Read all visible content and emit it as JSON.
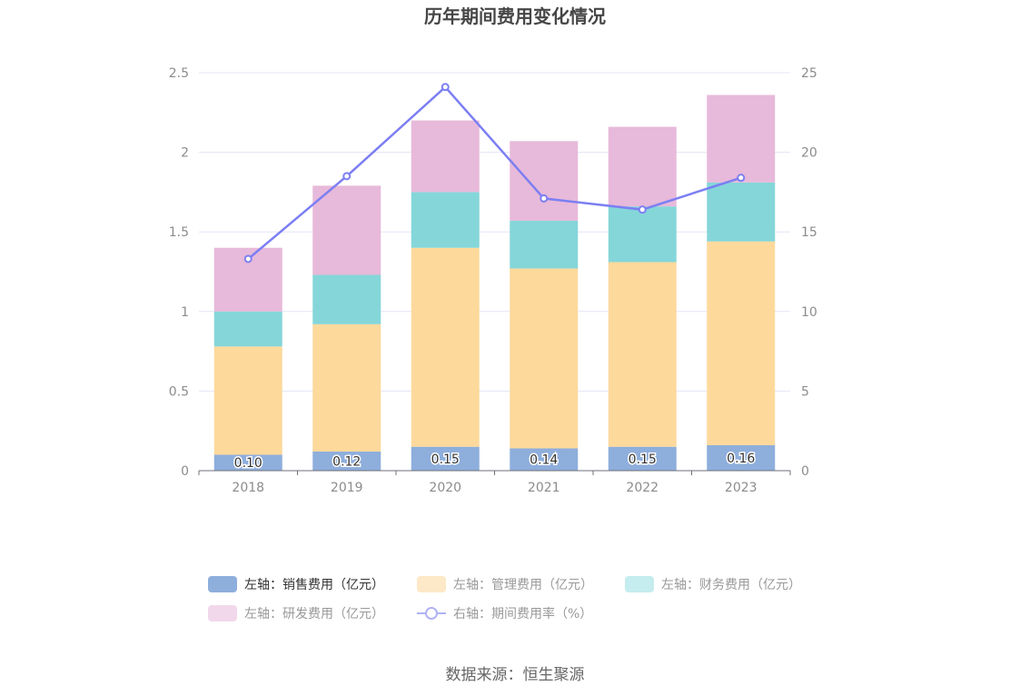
{
  "chart_data": {
    "type": "bar",
    "title": "历年期间费用变化情况",
    "source": "数据来源：恒生聚源",
    "categories": [
      "2018",
      "2019",
      "2020",
      "2021",
      "2022",
      "2023"
    ],
    "stacked": true,
    "left_axis": {
      "ylim": [
        0,
        2.5
      ],
      "ticks": [
        "0",
        "0.5",
        "1",
        "1.5",
        "2",
        "2.5"
      ],
      "tick_values": [
        0,
        0.5,
        1,
        1.5,
        2,
        2.5
      ]
    },
    "right_axis": {
      "ylim": [
        0,
        25
      ],
      "ticks": [
        "0",
        "5",
        "10",
        "15",
        "20",
        "25"
      ],
      "tick_values": [
        0,
        5,
        10,
        15,
        20,
        25
      ]
    },
    "grid": true,
    "legend_position": "bottom",
    "series": [
      {
        "name": "左轴：销售费用（亿元）",
        "type": "bar",
        "axis": "left",
        "color": "#8eaedc",
        "values": [
          0.1,
          0.12,
          0.15,
          0.14,
          0.15,
          0.16
        ],
        "labels": [
          "0.10",
          "0.12",
          "0.15",
          "0.14",
          "0.15",
          "0.16"
        ]
      },
      {
        "name": "左轴：管理费用（亿元）",
        "type": "bar",
        "axis": "left",
        "color": "#fed99c",
        "values": [
          0.68,
          0.8,
          1.25,
          1.13,
          1.16,
          1.28
        ]
      },
      {
        "name": "左轴：财务费用（亿元）",
        "type": "bar",
        "axis": "left",
        "color": "#85d6d9",
        "values": [
          0.22,
          0.31,
          0.35,
          0.3,
          0.35,
          0.37
        ]
      },
      {
        "name": "左轴：研发费用（亿元）",
        "type": "bar",
        "axis": "left",
        "color": "#e7b9da",
        "values": [
          0.4,
          0.56,
          0.45,
          0.5,
          0.5,
          0.55
        ]
      },
      {
        "name": "右轴：期间费用率（%）",
        "type": "line",
        "axis": "right",
        "color": "#7c7ff2",
        "values": [
          13.3,
          18.5,
          24.1,
          17.1,
          16.4,
          18.4
        ]
      }
    ]
  },
  "legend_colors": {
    "left_axis_swatch_faded": [
      "#8eaedc",
      "#fde8c7",
      "#c5ecee",
      "#f2d8eb"
    ],
    "line_swatch": "#b0b2f6",
    "active_text": "#333333",
    "inactive_text": "#999999"
  }
}
